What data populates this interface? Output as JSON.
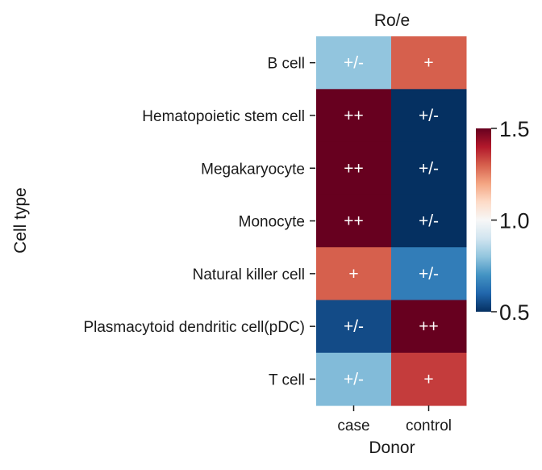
{
  "chart_data": {
    "type": "heatmap",
    "title": "Ro/e",
    "xlabel": "Donor",
    "ylabel": "Cell type",
    "x_categories": [
      "case",
      "control"
    ],
    "y_categories": [
      "B cell",
      "Hematopoietic stem cell",
      "Megakaryocyte",
      "Monocyte",
      "Natural killer cell",
      "Plasmacytoid dendritic cell(pDC)",
      "T cell"
    ],
    "values": [
      [
        0.8,
        1.3
      ],
      [
        1.6,
        0.4
      ],
      [
        1.6,
        0.4
      ],
      [
        1.6,
        0.4
      ],
      [
        1.3,
        0.65
      ],
      [
        0.55,
        1.6
      ],
      [
        0.78,
        1.35
      ]
    ],
    "annotations": [
      [
        "+/-",
        "+"
      ],
      [
        "++",
        "+/-"
      ],
      [
        "++",
        "+/-"
      ],
      [
        "++",
        "+/-"
      ],
      [
        "+",
        "+/-"
      ],
      [
        "+/-",
        "++"
      ],
      [
        "+/-",
        "+"
      ]
    ],
    "colormap": "RdBu_r",
    "colorbar": {
      "vmin": 0.5,
      "vmax": 1.5,
      "ticks": [
        "0.5",
        "1.0",
        "1.5"
      ]
    }
  }
}
